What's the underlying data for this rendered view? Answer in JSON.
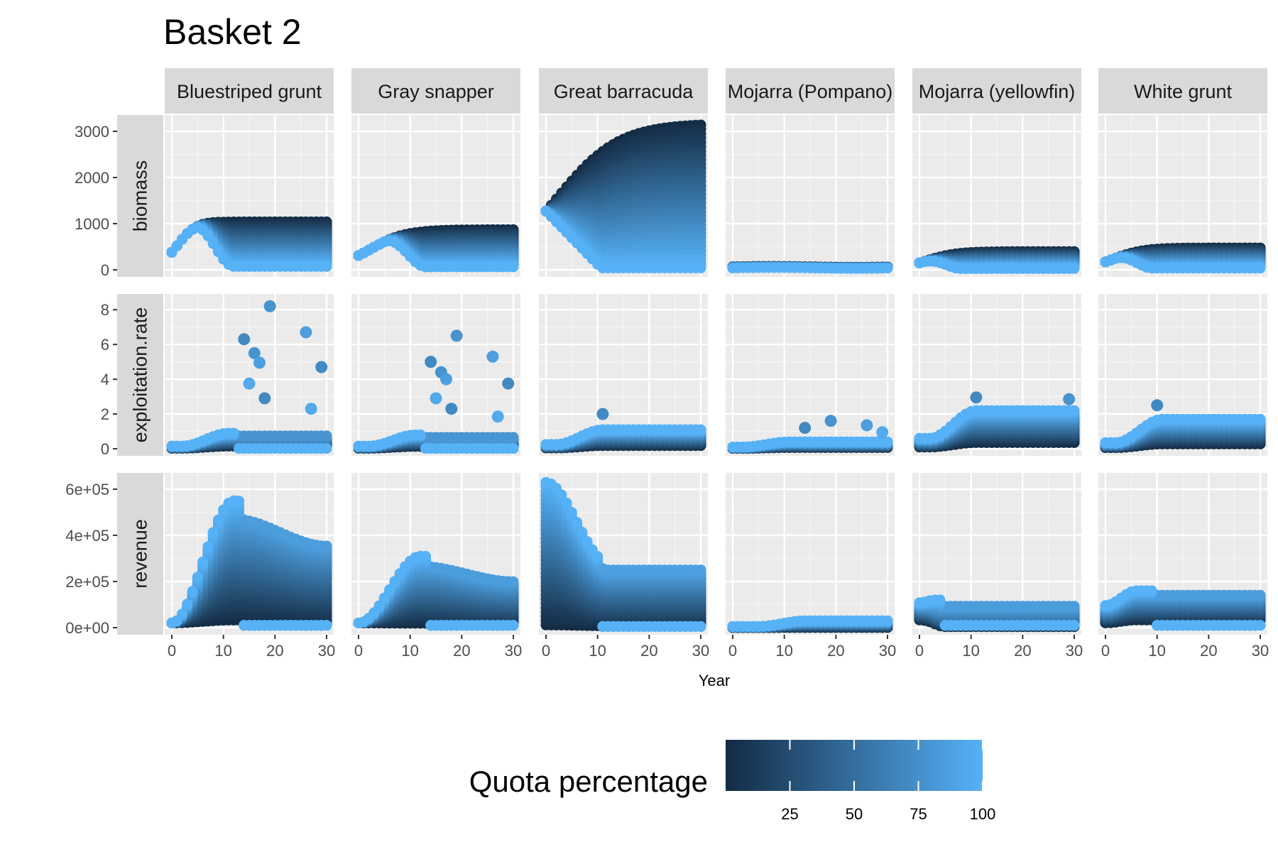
{
  "chart_data": {
    "type": "scatter",
    "title": "Basket 2",
    "xlabel": "Year",
    "xlim": [
      0,
      30
    ],
    "x_ticks": [
      0,
      10,
      20,
      30
    ],
    "x_tick_labels": [
      "0",
      "10",
      "20",
      "30"
    ],
    "facets": {
      "columns": [
        "Bluestriped grunt",
        "Gray snapper",
        "Great barracuda",
        "Mojarra (Pompano)",
        "Mojarra (yellowfin)",
        "White grunt"
      ],
      "rows": [
        {
          "name": "biomass",
          "ylim": [
            0,
            3200
          ],
          "ticks": [
            0,
            1000,
            2000,
            3000
          ],
          "tick_labels": [
            "0",
            "1000",
            "2000",
            "3000"
          ]
        },
        {
          "name": "exploitation.rate",
          "ylim": [
            0,
            8.5
          ],
          "ticks": [
            0,
            2,
            4,
            6,
            8
          ],
          "tick_labels": [
            "0",
            "2",
            "4",
            "6",
            "8"
          ]
        },
        {
          "name": "revenue",
          "ylim": [
            0,
            640000
          ],
          "ticks": [
            0,
            200000,
            400000,
            600000
          ],
          "tick_labels": [
            "0e+00",
            "2e+05",
            "4e+05",
            "6e+05"
          ]
        }
      ]
    },
    "color_scale": {
      "title": "Quota percentage",
      "low_color": "#132B43",
      "high_color": "#56B1F7",
      "range": [
        0,
        100
      ],
      "ticks": [
        25,
        50,
        75,
        100
      ],
      "tick_labels": [
        "25",
        "50",
        "75",
        "100"
      ]
    },
    "panel_summaries": {
      "biomass": {
        "Bluestriped grunt": {
          "start": 380,
          "max": 1050,
          "collapse_min": 60
        },
        "Gray snapper": {
          "start": 310,
          "max": 880,
          "collapse_min": 60
        },
        "Great barracuda": {
          "start": 1270,
          "max": 3200,
          "collapse_min": 40
        },
        "Mojarra (Pompano)": {
          "start": 60,
          "max": 80,
          "collapse_min": 30
        },
        "Mojarra (yellowfin)": {
          "start": 150,
          "max": 400,
          "collapse_min": 20
        },
        "White grunt": {
          "start": 170,
          "max": 480,
          "collapse_min": 40
        }
      },
      "exploitation_rate_outliers": {
        "Bluestriped grunt": [
          [
            14,
            6.3
          ],
          [
            16,
            5.5
          ],
          [
            17,
            4.95
          ],
          [
            15,
            3.75
          ],
          [
            18,
            2.9
          ],
          [
            19,
            8.2
          ],
          [
            26,
            6.7
          ],
          [
            27,
            2.3
          ],
          [
            29,
            4.7
          ]
        ],
        "Gray snapper": [
          [
            14,
            5.0
          ],
          [
            16,
            4.4
          ],
          [
            17,
            4.0
          ],
          [
            15,
            2.9
          ],
          [
            18,
            2.3
          ],
          [
            19,
            6.5
          ],
          [
            26,
            5.3
          ],
          [
            27,
            1.85
          ],
          [
            29,
            3.75
          ]
        ],
        "Great barracuda": [
          [
            11,
            2.0
          ]
        ],
        "Mojarra (Pompano)": [
          [
            14,
            1.2
          ],
          [
            19,
            1.6
          ],
          [
            26,
            1.35
          ],
          [
            29,
            0.95
          ]
        ],
        "Mojarra (yellowfin)": [
          [
            11,
            2.95
          ],
          [
            29,
            2.85
          ]
        ],
        "White grunt": [
          [
            10,
            2.5
          ]
        ]
      },
      "revenue_peak": {
        "Bluestriped grunt": 550000,
        "Gray snapper": 310000,
        "Great barracuda": 630000,
        "Mojarra (Pompano)": 85000,
        "Mojarra (yellowfin)": 120000,
        "White grunt": 160000
      }
    }
  }
}
